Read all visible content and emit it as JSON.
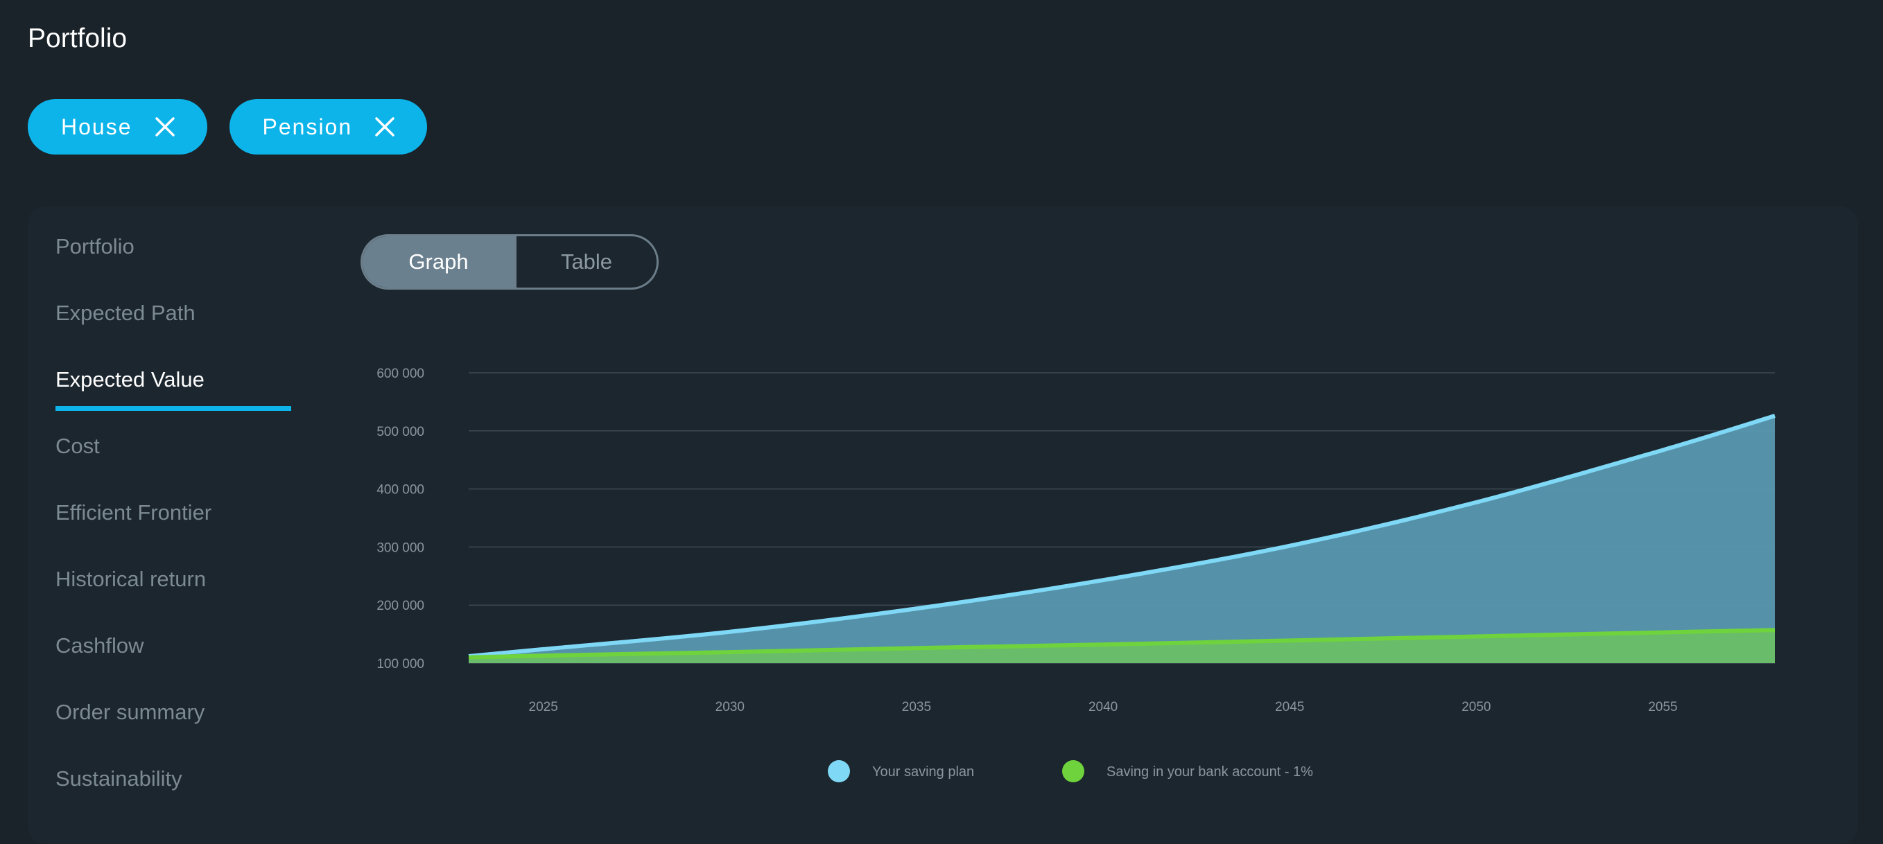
{
  "header": {
    "title": "Portfolio"
  },
  "chips": [
    {
      "label": "House",
      "close_icon": "close-icon"
    },
    {
      "label": "Pension",
      "close_icon": "close-icon"
    }
  ],
  "sidebar": {
    "items": [
      {
        "label": "Portfolio"
      },
      {
        "label": "Expected Path"
      },
      {
        "label": "Expected Value",
        "active": true
      },
      {
        "label": "Cost"
      },
      {
        "label": "Efficient Frontier"
      },
      {
        "label": "Historical return"
      },
      {
        "label": "Cashflow"
      },
      {
        "label": "Order summary"
      },
      {
        "label": "Sustainability"
      }
    ]
  },
  "view_toggle": {
    "graph_label": "Graph",
    "table_label": "Table",
    "selected": "Graph"
  },
  "colors": {
    "accent": "#0db4ea",
    "saving_plan_line": "#7fd8f5",
    "saving_plan_fill": "#5898b1",
    "bank_line": "#6fd33d",
    "bank_fill": "#6abf66"
  },
  "chart_data": {
    "type": "area",
    "x": [
      2023,
      2025,
      2030,
      2035,
      2040,
      2045,
      2050,
      2055,
      2058
    ],
    "x_ticks": [
      "2025",
      "2030",
      "2035",
      "2040",
      "2045",
      "2050",
      "2055"
    ],
    "y_ticks": [
      "100 000",
      "200 000",
      "300 000",
      "400 000",
      "500 000",
      "600 000"
    ],
    "ylim": [
      100000,
      600000
    ],
    "grid": true,
    "legend_position": "bottom",
    "series": [
      {
        "name": "Your saving plan",
        "values": [
          112000,
          124000,
          154000,
          194000,
          243000,
          302000,
          377000,
          467000,
          526000
        ]
      },
      {
        "name": "Saving in your bank account - 1%",
        "values": [
          110000,
          113000,
          119000,
          126000,
          132000,
          139000,
          146000,
          153000,
          157000
        ]
      }
    ]
  }
}
